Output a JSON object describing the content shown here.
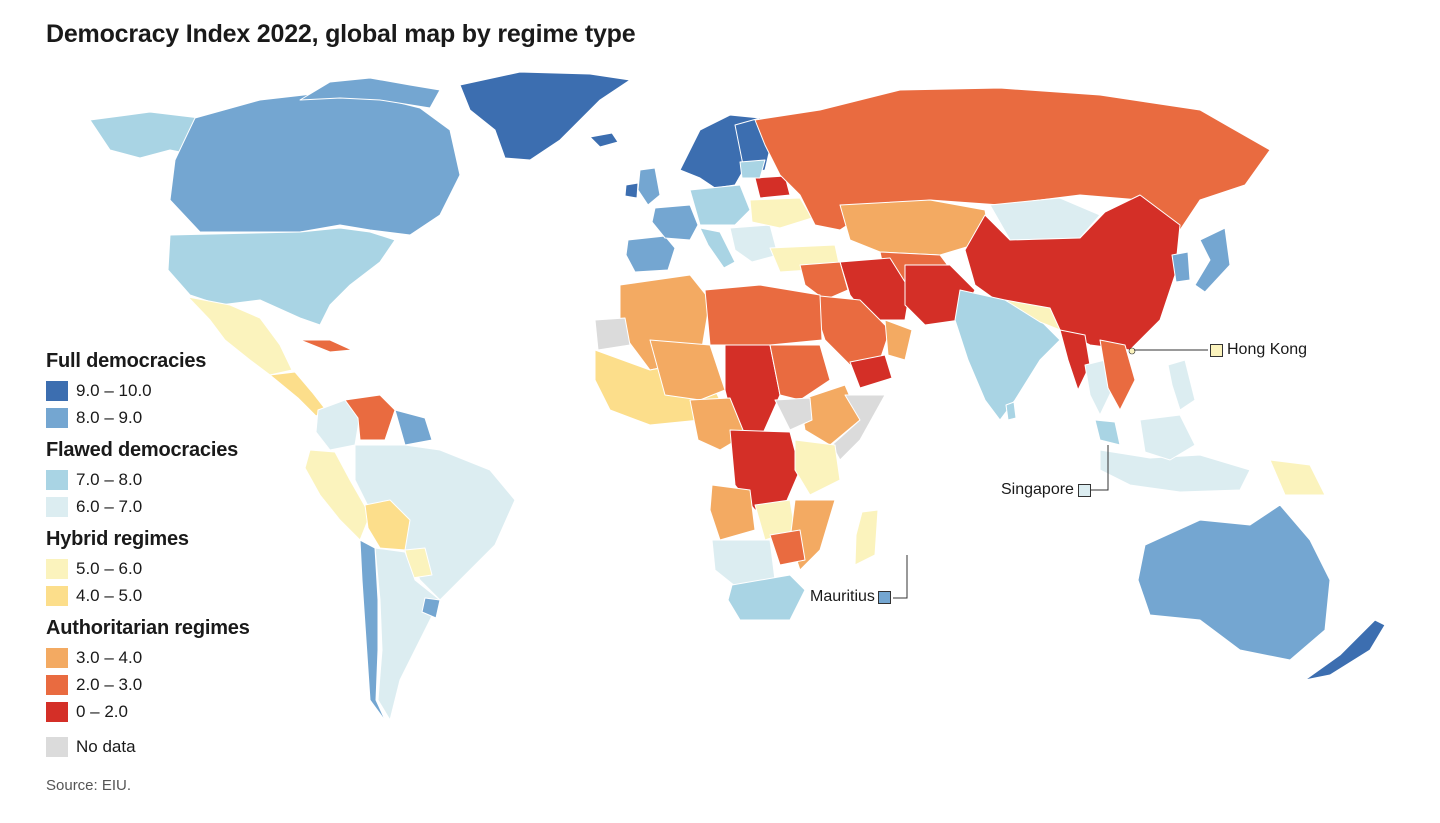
{
  "title": "Democracy Index 2022, global map by regime type",
  "source": "Source: EIU.",
  "legend": {
    "groups": [
      {
        "title": "Full democracies",
        "items": [
          {
            "label": "9.0 – 10.0",
            "color": "#3c6eb0"
          },
          {
            "label": "8.0 – 9.0",
            "color": "#74a6d1"
          }
        ]
      },
      {
        "title": "Flawed democracies",
        "items": [
          {
            "label": "7.0 – 8.0",
            "color": "#a9d4e4"
          },
          {
            "label": "6.0 – 7.0",
            "color": "#dcedf1"
          }
        ]
      },
      {
        "title": "Hybrid regimes",
        "items": [
          {
            "label": "5.0 – 6.0",
            "color": "#fbf3bd"
          },
          {
            "label": "4.0 – 5.0",
            "color": "#fcde8b"
          }
        ]
      },
      {
        "title": "Authoritarian regimes",
        "items": [
          {
            "label": "3.0 – 4.0",
            "color": "#f3aa62"
          },
          {
            "label": "2.0 – 3.0",
            "color": "#e96b40"
          },
          {
            "label": "0 – 2.0",
            "color": "#d42f27"
          }
        ]
      },
      {
        "title": "",
        "items": [
          {
            "label": "No data",
            "color": "#dbdbdb"
          }
        ]
      }
    ]
  },
  "callouts": {
    "hong_kong": {
      "label": "Hong Kong",
      "color": "#fbf3bd"
    },
    "singapore": {
      "label": "Singapore",
      "color": "#dcedf1"
    },
    "mauritius": {
      "label": "Mauritius",
      "color": "#74a6d1"
    }
  }
}
